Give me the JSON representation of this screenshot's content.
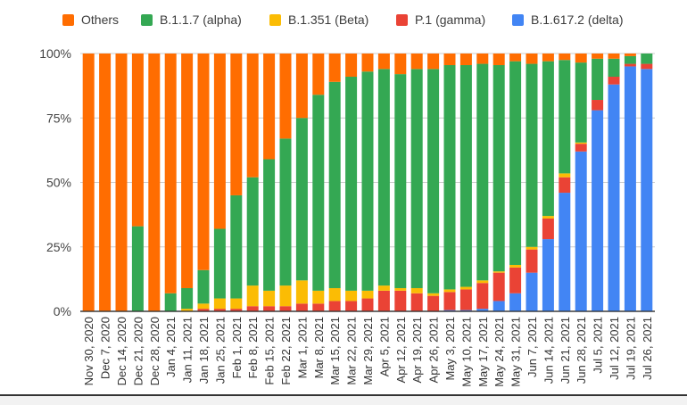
{
  "chart_data": {
    "type": "bar",
    "stacked": true,
    "normalized": true,
    "title": "",
    "xlabel": "",
    "ylabel": "",
    "ylim": [
      0,
      100
    ],
    "y_ticks": [
      "0%",
      "25%",
      "50%",
      "75%",
      "100%"
    ],
    "legend_position": "top-left",
    "categories": [
      "Nov 30, 2020",
      "Dec 7, 2020",
      "Dec 14, 2020",
      "Dec 21, 2020",
      "Dec 28, 2020",
      "Jan 4, 2021",
      "Jan 11, 2021",
      "Jan 18, 2021",
      "Jan 25, 2021",
      "Feb 1, 2021",
      "Feb 8, 2021",
      "Feb 15, 2021",
      "Feb 22, 2021",
      "Mar 1, 2021",
      "Mar 8, 2021",
      "Mar 15, 2021",
      "Mar 22, 2021",
      "Mar 29, 2021",
      "Apr 5, 2021",
      "Apr 12, 2021",
      "Apr 19, 2021",
      "Apr 26, 2021",
      "May 3, 2021",
      "May 10, 2021",
      "May 17, 2021",
      "May 24, 2021",
      "May 31, 2021",
      "Jun 7, 2021",
      "Jun 14, 2021",
      "Jun 21, 2021",
      "Jun 28, 2021",
      "Jul 5, 2021",
      "Jul 12, 2021",
      "Jul 19, 2021",
      "Jul 26, 2021"
    ],
    "series": [
      {
        "name": "B.1.617.2 (delta)",
        "color": "#4285f4",
        "values": [
          0,
          0,
          0,
          0,
          0,
          0,
          0,
          0,
          0,
          0,
          0,
          0,
          0,
          0,
          0,
          0,
          0,
          0,
          0,
          0,
          0,
          0,
          0.5,
          0.5,
          1,
          4,
          7,
          15,
          28,
          46,
          62,
          78,
          88,
          95,
          94
        ]
      },
      {
        "name": "P.1 (gamma)",
        "color": "#ea4335",
        "values": [
          0,
          0,
          0,
          0,
          0,
          0,
          0,
          1,
          1,
          1,
          2,
          2,
          2,
          3,
          3,
          4,
          4,
          5,
          8,
          8,
          7,
          6,
          7,
          8,
          10,
          11,
          10,
          9,
          8,
          6,
          3,
          4,
          3,
          1,
          2
        ]
      },
      {
        "name": "B.1.351 (Beta)",
        "color": "#fbbc04",
        "values": [
          0,
          0,
          0,
          0,
          0,
          0,
          1,
          2,
          4,
          4,
          8,
          6,
          8,
          9,
          5,
          5,
          4,
          3,
          2,
          1,
          2,
          1,
          1,
          1,
          1,
          0.5,
          1,
          1,
          1,
          1.5,
          0.5,
          0,
          0,
          0,
          0
        ]
      },
      {
        "name": "B.1.1.7 (alpha)",
        "color": "#34a853",
        "values": [
          0,
          0,
          0,
          33,
          0,
          7,
          8,
          13,
          27,
          40,
          42,
          51,
          57,
          63,
          76,
          80,
          83,
          85,
          84,
          83,
          85,
          87,
          87,
          86,
          84,
          80,
          79,
          71,
          60,
          44,
          31,
          16,
          7,
          3,
          4
        ]
      },
      {
        "name": "Others",
        "color": "#ff6d01",
        "values": [
          100,
          100,
          100,
          67,
          100,
          93,
          91,
          84,
          68,
          55,
          48,
          41,
          33,
          25,
          16,
          11,
          9,
          7,
          6,
          8,
          6,
          6,
          4.5,
          4.5,
          4,
          4.5,
          3,
          4,
          3,
          2.5,
          3.5,
          2,
          2,
          1,
          0
        ]
      }
    ],
    "legend_order": [
      "Others",
      "B.1.1.7 (alpha)",
      "B.1.351 (Beta)",
      "P.1 (gamma)",
      "B.1.617.2 (delta)"
    ]
  }
}
